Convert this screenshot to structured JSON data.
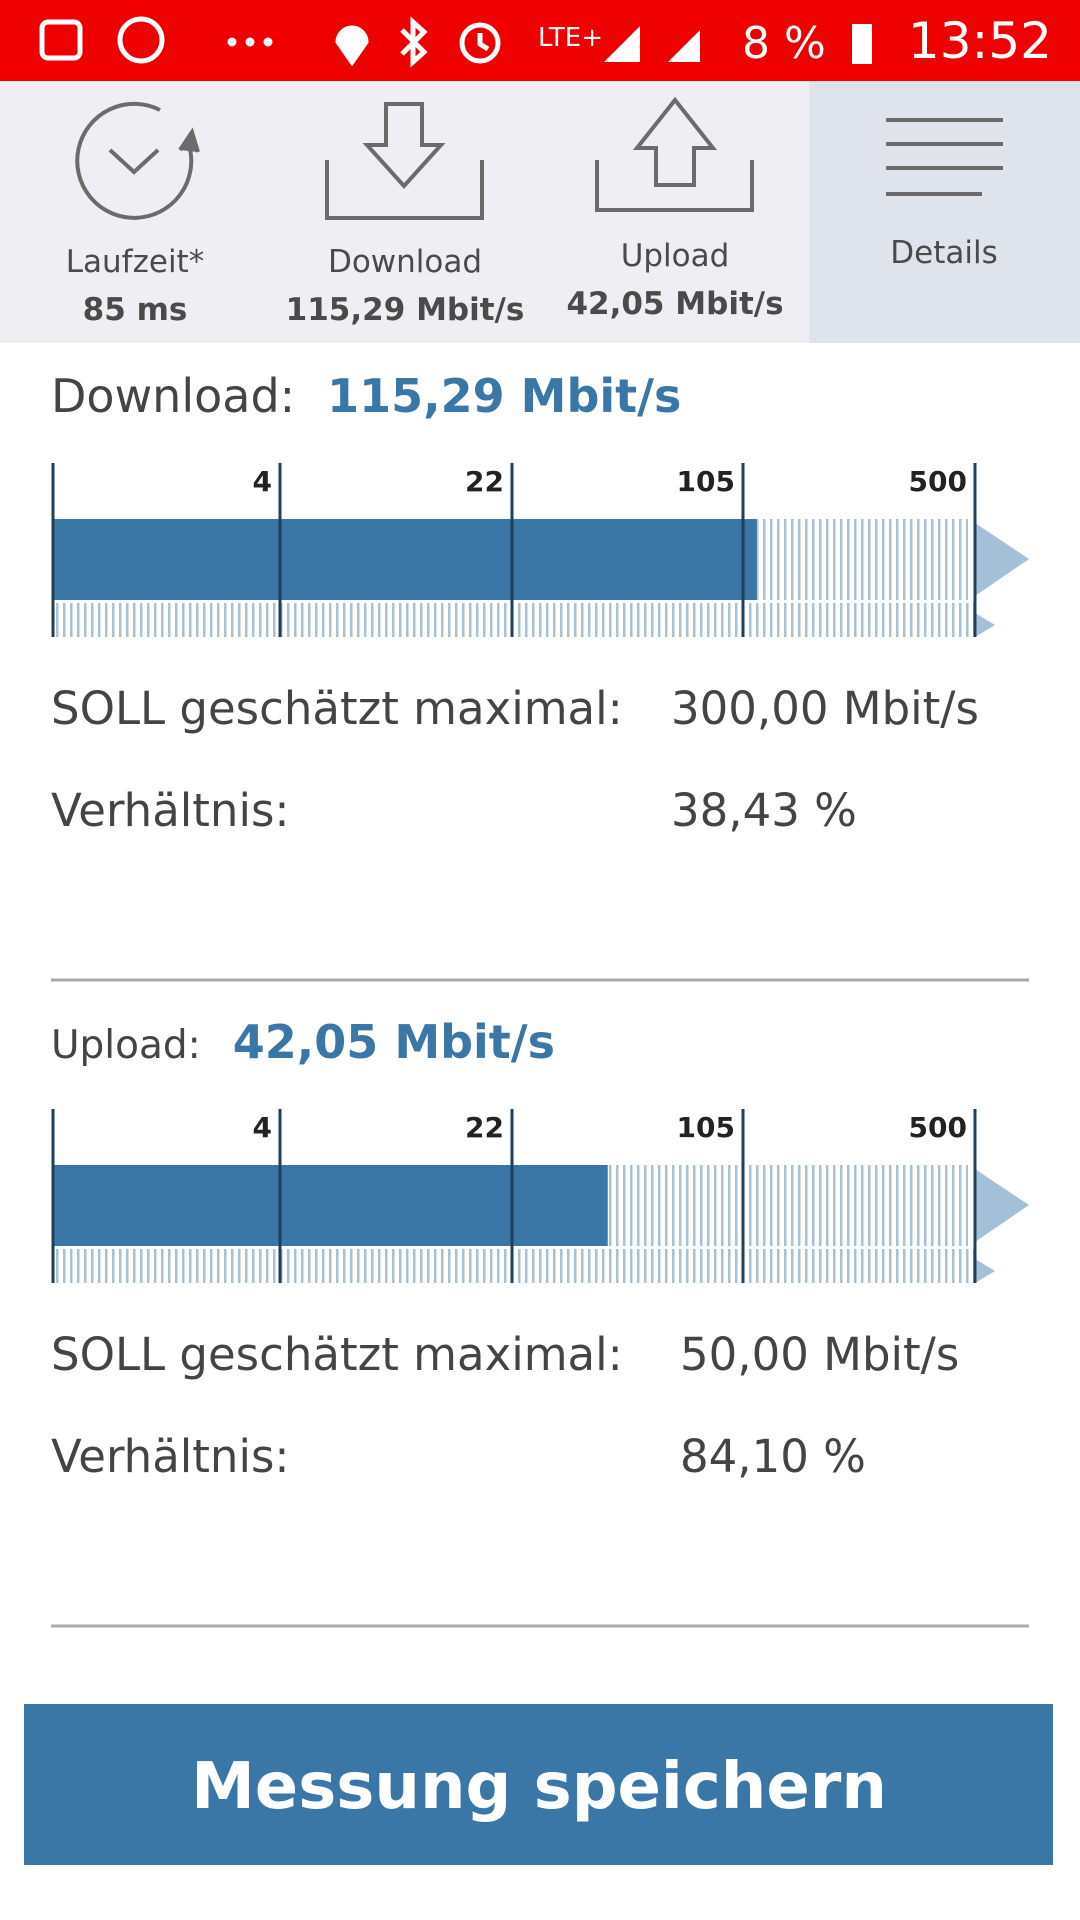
{
  "status_bar": {
    "network": "LTE+",
    "battery": "8 %",
    "time": "13:52"
  },
  "tabs": [
    {
      "label": "Laufzeit*",
      "value": "85 ms"
    },
    {
      "label": "Download",
      "value": "115,29 Mbit/s"
    },
    {
      "label": "Upload",
      "value": "42,05 Mbit/s"
    },
    {
      "label": "Details"
    }
  ],
  "sections": [
    {
      "label": "Download:",
      "value": "115,29 Mbit/s",
      "meter": {
        "ticks": [
          4,
          22,
          105,
          500
        ],
        "value": 115.29
      },
      "rows": [
        {
          "label": "SOLL geschätzt maximal:",
          "value": "300,00 Mbit/s"
        },
        {
          "label": "Verhältnis:",
          "value": "38,43 %"
        }
      ]
    },
    {
      "label": "Upload:",
      "value": "42,05 Mbit/s",
      "meter": {
        "ticks": [
          4,
          22,
          105,
          500
        ],
        "value": 42.05
      },
      "rows": [
        {
          "label": "SOLL geschätzt maximal:",
          "value": "50,00 Mbit/s"
        },
        {
          "label": "Verhältnis:",
          "value": "84,10 %"
        }
      ]
    }
  ],
  "button": "Messung speichern"
}
